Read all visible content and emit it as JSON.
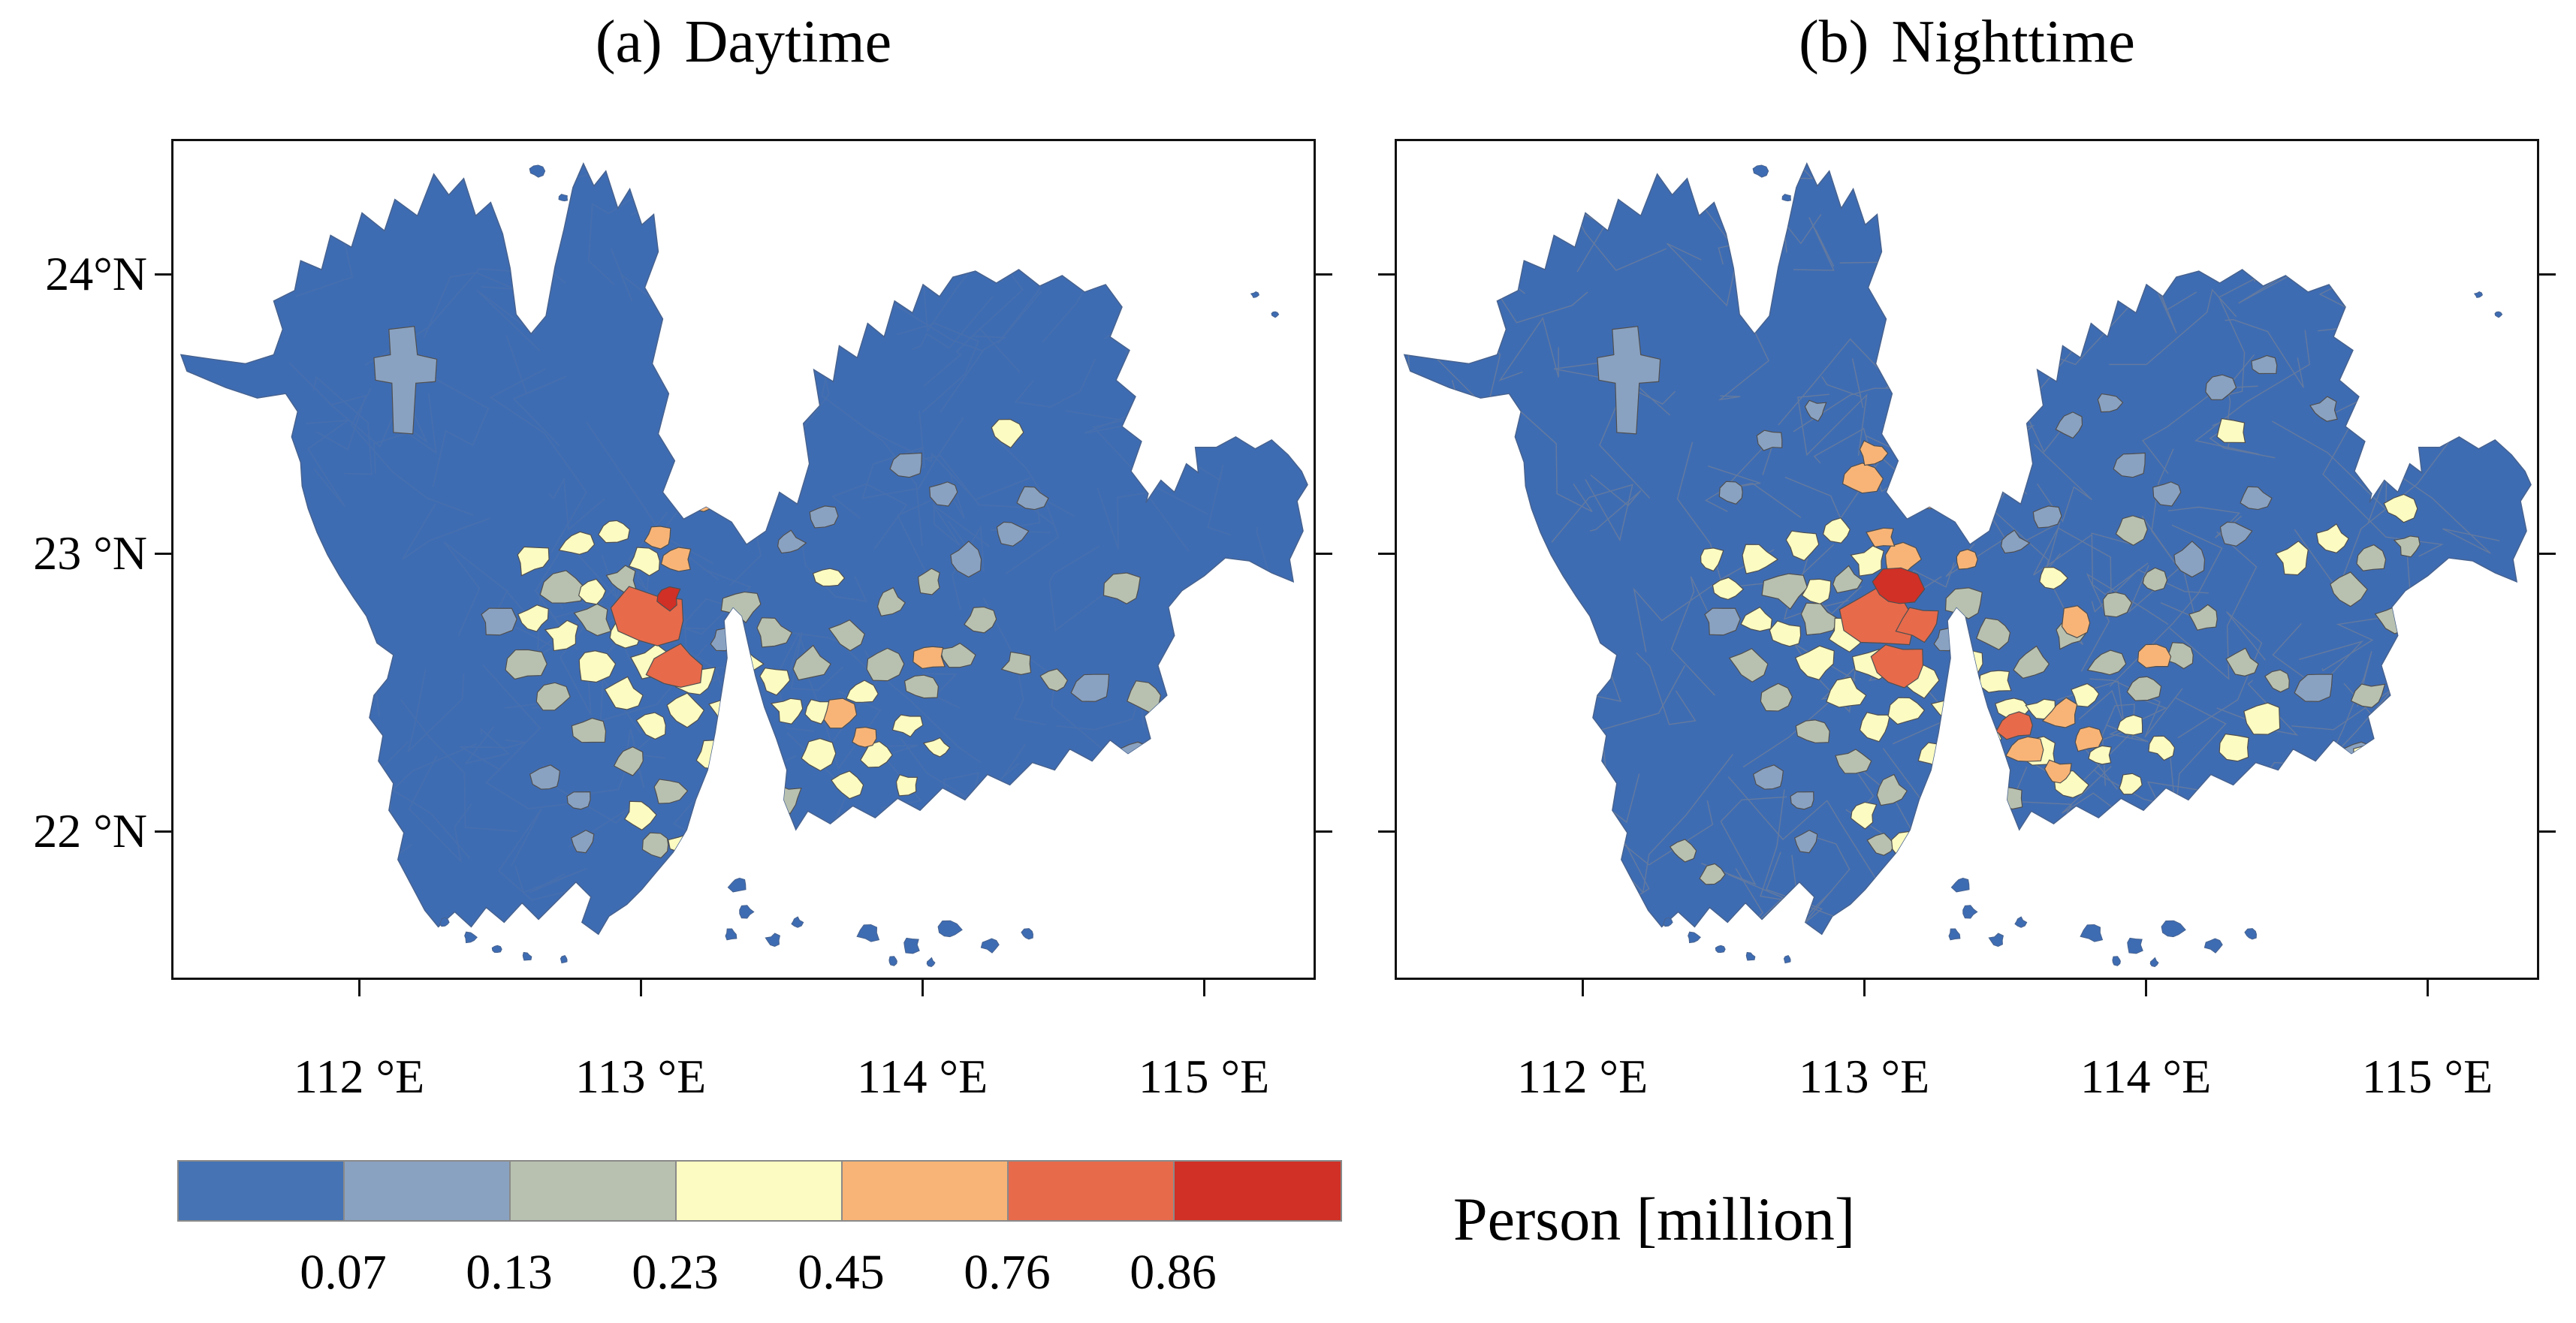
{
  "figure": {
    "panels": [
      {
        "id": "daytime",
        "title_prefix": "(a)",
        "title_text": "Daytime",
        "x_tick_labels": [
          "112 °E",
          "113 °E",
          "114 °E",
          "115 °E"
        ]
      },
      {
        "id": "nighttime",
        "title_prefix": "(b)",
        "title_text": "Nighttime",
        "x_tick_labels": [
          "112 °E",
          "113 °E",
          "114 °E",
          "115 °E"
        ]
      }
    ],
    "y_tick_labels": [
      "24°N",
      "23 °N",
      "22 °N"
    ],
    "colorbar": {
      "label": "Person [million]",
      "tick_labels": [
        "0.07",
        "0.13",
        "0.23",
        "0.45",
        "0.76",
        "0.86"
      ],
      "segment_colors": [
        "#4573b4",
        "#8aa2c1",
        "#b8c1b0",
        "#fcfbc1",
        "#f8b476",
        "#e76a4b",
        "#d03026"
      ]
    },
    "map_colors": {
      "land_base": "#3e6cb3",
      "boundary_line": "#83878e",
      "patch_outline": "#4f4f4f",
      "sea": "#ffffff"
    }
  },
  "chart_data": {
    "type": "choropleth_map",
    "maps": [
      {
        "label": "(a) Daytime"
      },
      {
        "label": "(b) Nighttime"
      }
    ],
    "value_label": "Person [million]",
    "num_classes": 7,
    "class_breaks": [
      0.07,
      0.13,
      0.23,
      0.45,
      0.76,
      0.86
    ],
    "class_colors": [
      "#4573b4",
      "#8aa2c1",
      "#b8c1b0",
      "#fcfbc1",
      "#f8b476",
      "#e76a4b",
      "#d03026"
    ],
    "longitude_ticks": [
      "112 °E",
      "113 °E",
      "114 °E",
      "115 °E"
    ],
    "latitude_ticks": [
      "24°N",
      "23 °N",
      "22 °N"
    ],
    "legend_position": "bottom-left",
    "notes": "Two classed choropleth panels sharing one color scale; highest classes concentrated in the central urban cluster, nighttime panel shows visible sub-district boundary mesh and a dark red core."
  }
}
